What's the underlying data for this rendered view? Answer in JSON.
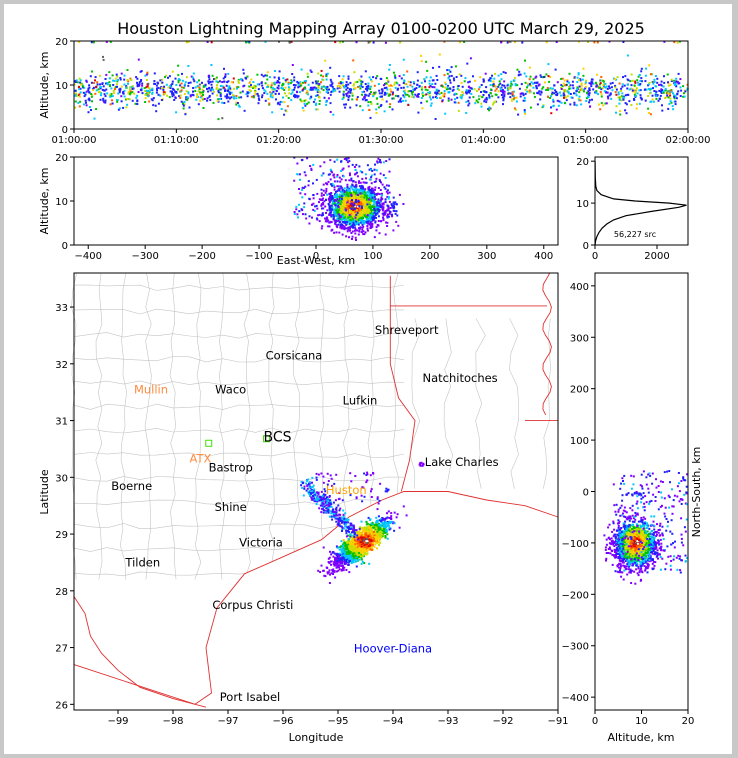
{
  "figure": {
    "title": "Houston Lightning Mapping Array 0100-0200 UTC March 29, 2025"
  },
  "chart_data": [
    {
      "id": "time_height",
      "type": "scatter",
      "ylabel": "Altitude, km",
      "xlabel": "",
      "x_ticks": [
        "01:00:00",
        "01:10:00",
        "01:20:00",
        "01:30:00",
        "01:40:00",
        "01:50:00",
        "02:00:00"
      ],
      "xlim_minutes": [
        0,
        60
      ],
      "ylim": [
        0,
        20
      ],
      "y_ticks": [
        0,
        10,
        20
      ]
    },
    {
      "id": "ew_height",
      "type": "scatter",
      "xlabel": "East-West, km",
      "ylabel": "Altitude, km",
      "xlim": [
        -425,
        425
      ],
      "ylim": [
        0,
        20
      ],
      "x_ticks": [
        -400,
        -300,
        -200,
        -100,
        0,
        100,
        200,
        300,
        400
      ],
      "y_ticks": [
        0,
        10,
        20
      ]
    },
    {
      "id": "height_histogram",
      "type": "line",
      "xlim": [
        0,
        3000
      ],
      "ylim": [
        0,
        21
      ],
      "x_ticks": [
        0,
        2000
      ],
      "y_ticks": [
        0,
        10,
        20
      ],
      "annotation": "56,227 src",
      "profile": [
        {
          "alt": 0.0,
          "count": 0
        },
        {
          "alt": 1,
          "count": 20
        },
        {
          "alt": 2,
          "count": 60
        },
        {
          "alt": 3,
          "count": 130
        },
        {
          "alt": 4,
          "count": 230
        },
        {
          "alt": 5,
          "count": 380
        },
        {
          "alt": 6,
          "count": 600
        },
        {
          "alt": 7,
          "count": 1000
        },
        {
          "alt": 8,
          "count": 1800
        },
        {
          "alt": 9,
          "count": 2700
        },
        {
          "alt": 9.5,
          "count": 2950
        },
        {
          "alt": 10,
          "count": 2400
        },
        {
          "alt": 10.5,
          "count": 1300
        },
        {
          "alt": 11,
          "count": 600
        },
        {
          "alt": 12,
          "count": 200
        },
        {
          "alt": 13,
          "count": 60
        },
        {
          "alt": 14,
          "count": 25
        },
        {
          "alt": 16,
          "count": 10
        },
        {
          "alt": 18,
          "count": 5
        },
        {
          "alt": 20,
          "count": 3
        }
      ]
    },
    {
      "id": "plan_view",
      "type": "scatter",
      "xlabel": "Longitude",
      "ylabel": "Latitude",
      "xlim": [
        -99.8,
        -91.0
      ],
      "ylim": [
        25.9,
        33.6
      ],
      "x_ticks": [
        -99,
        -98,
        -97,
        -96,
        -95,
        -94,
        -93,
        -92,
        -91
      ],
      "x_tick_labels": [
        "−99",
        "−98",
        "−97",
        "−96",
        "−95",
        "−94",
        "−93",
        "−92",
        "−91"
      ],
      "y_ticks": [
        26,
        27,
        28,
        29,
        30,
        31,
        32,
        33
      ],
      "place_labels": [
        {
          "name": "Shreveport",
          "lon": -93.75,
          "lat": 32.6,
          "color": "#000000"
        },
        {
          "name": "Corsicana",
          "lon": -95.8,
          "lat": 32.15,
          "color": "#000000"
        },
        {
          "name": "Natchitoches",
          "lon": -92.78,
          "lat": 31.75,
          "color": "#000000"
        },
        {
          "name": "Mullin",
          "lon": -98.4,
          "lat": 31.55,
          "color": "#ff8c40"
        },
        {
          "name": "Waco",
          "lon": -96.95,
          "lat": 31.55,
          "color": "#000000"
        },
        {
          "name": "Lufkin",
          "lon": -94.6,
          "lat": 31.35,
          "color": "#000000"
        },
        {
          "name": "BCS",
          "lon": -96.1,
          "lat": 30.7,
          "color": "#000000"
        },
        {
          "name": "ATX",
          "lon": -97.5,
          "lat": 30.33,
          "color": "#ff8c40"
        },
        {
          "name": "Lake Charles",
          "lon": -92.75,
          "lat": 30.27,
          "color": "#000000"
        },
        {
          "name": "Bastrop",
          "lon": -96.95,
          "lat": 30.17,
          "color": "#000000"
        },
        {
          "name": "Boerne",
          "lon": -98.75,
          "lat": 29.85,
          "color": "#000000"
        },
        {
          "name": "Huston",
          "lon": -94.85,
          "lat": 29.78,
          "color": "#ffa000"
        },
        {
          "name": "Shine",
          "lon": -96.95,
          "lat": 29.48,
          "color": "#000000"
        },
        {
          "name": "Victoria",
          "lon": -96.4,
          "lat": 28.85,
          "color": "#000000"
        },
        {
          "name": "Tilden",
          "lon": -98.55,
          "lat": 28.5,
          "color": "#000000"
        },
        {
          "name": "Corpus Christi",
          "lon": -96.55,
          "lat": 27.75,
          "color": "#000000"
        },
        {
          "name": "Hoover-Diana",
          "lon": -94.0,
          "lat": 26.98,
          "color": "#0000ff"
        },
        {
          "name": "Port Isabel",
          "lon": -96.6,
          "lat": 26.13,
          "color": "#000000"
        }
      ]
    },
    {
      "id": "height_ns",
      "type": "scatter",
      "xlabel": "Altitude, km",
      "ylabel": "North-South, km",
      "xlim": [
        0,
        20
      ],
      "ylim": [
        -425,
        425
      ],
      "x_ticks": [
        0,
        10,
        20
      ],
      "y_ticks": [
        -400,
        -300,
        -200,
        -100,
        0,
        100,
        200,
        300,
        400
      ],
      "y_tick_labels": [
        "−400",
        "−300",
        "−200",
        "−100",
        "0",
        "100",
        "200",
        "300",
        "400"
      ]
    }
  ]
}
